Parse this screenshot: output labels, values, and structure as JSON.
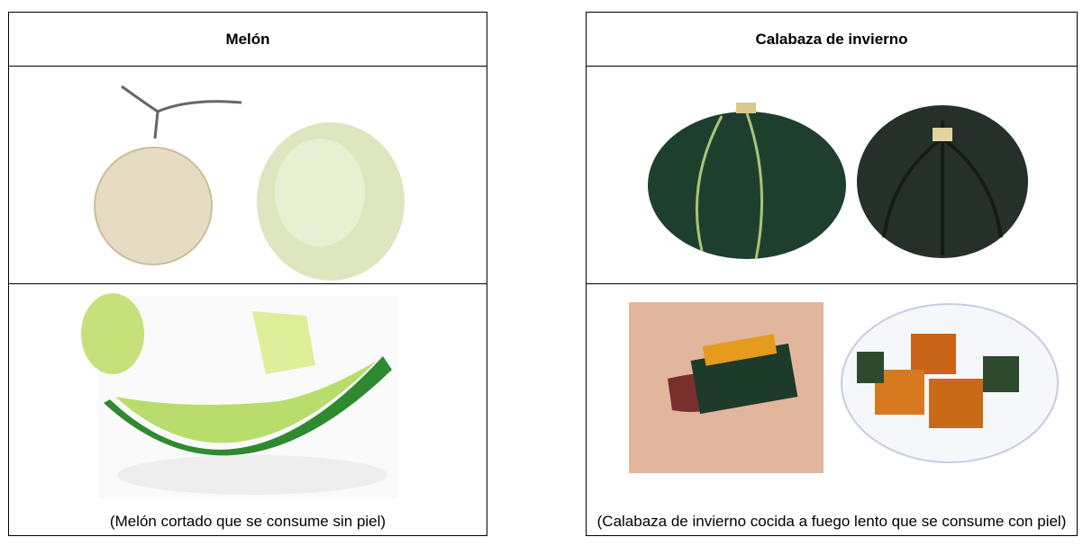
{
  "tables": [
    {
      "header": "Melón",
      "caption": "(Melón cortado que se consume sin piel)"
    },
    {
      "header": "Calabaza de invierno",
      "caption": "(Calabaza de invierno cocida a fuego lento que se consume con piel)"
    }
  ]
}
